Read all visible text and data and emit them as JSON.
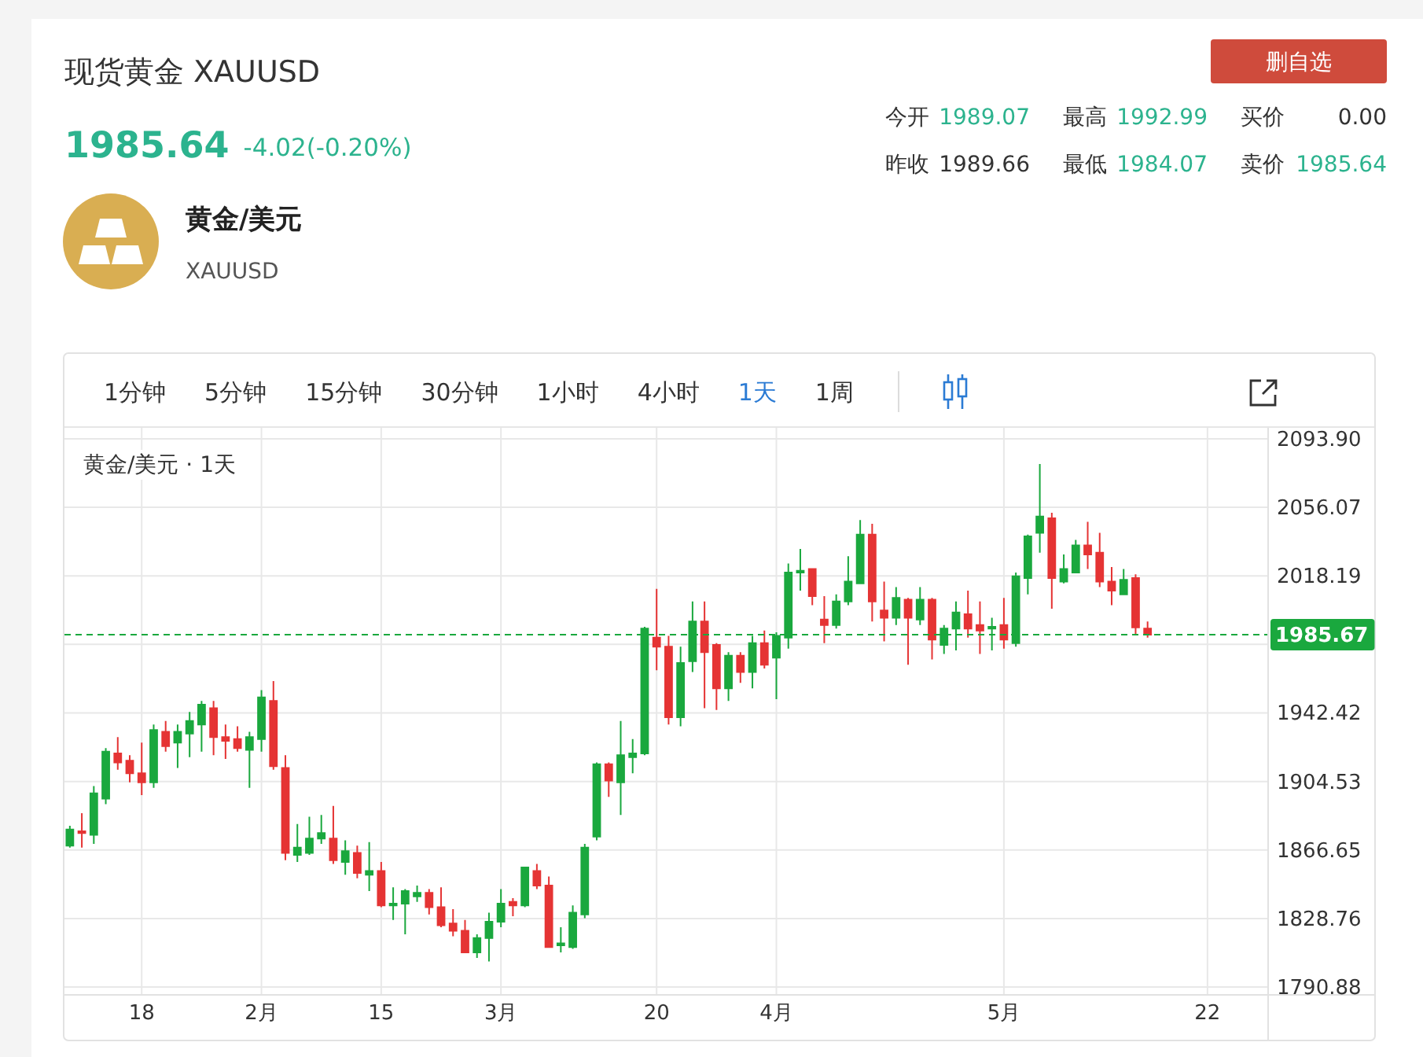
{
  "chart_data": [
    {
      "type": "other",
      "title": "现货黄金 XAUUSD",
      "annotations": [
        "1985.64",
        "-4.02(-0.20%)",
        "黄金/美元",
        "XAUUSD",
        "删自选",
        "今开",
        "1989.07",
        "最高",
        "1992.99",
        "买价",
        "0.00",
        "昨收",
        "1989.66",
        "最低",
        "1984.07",
        "卖价",
        "1985.64"
      ]
    },
    {
      "type": "candlestick",
      "title": "黄金/美元 · 1天",
      "annotations": [
        "1分钟",
        "5分钟",
        "15分钟",
        "30分钟",
        "1小时",
        "4小时",
        "1天",
        "1周"
      ],
      "categories": [
        null,
        null,
        null,
        null,
        null,
        null,
        "18",
        null,
        null,
        null,
        null,
        null,
        null,
        null,
        null,
        null,
        "2月",
        null,
        null,
        null,
        null,
        null,
        null,
        null,
        null,
        null,
        "15",
        null,
        null,
        null,
        null,
        null,
        null,
        null,
        null,
        null,
        "3月",
        null,
        null,
        null,
        null,
        null,
        null,
        null,
        null,
        null,
        null,
        null,
        null,
        "20",
        null,
        null,
        null,
        null,
        null,
        null,
        null,
        null,
        null,
        "4月",
        null,
        null,
        null,
        null,
        null,
        null,
        null,
        null,
        null,
        null,
        null,
        null,
        null,
        null,
        null,
        null,
        null,
        null,
        "5月",
        null,
        null,
        null,
        null,
        null,
        null,
        null,
        null,
        null,
        null,
        null,
        null,
        null,
        null,
        null,
        null,
        "22"
      ],
      "ohlc": [
        [
          1869,
          1880,
          1868,
          1878
        ],
        [
          1877,
          1887,
          1868,
          1876
        ],
        [
          1875,
          1902,
          1870,
          1898
        ],
        [
          1895,
          1923,
          1892,
          1921
        ],
        [
          1920,
          1929,
          1911,
          1915
        ],
        [
          1916,
          1919,
          1904,
          1909
        ],
        [
          1909,
          1926,
          1897,
          1904
        ],
        [
          1904,
          1936,
          1901,
          1933
        ],
        [
          1932,
          1938,
          1921,
          1924
        ],
        [
          1926,
          1936,
          1912,
          1932
        ],
        [
          1931,
          1943,
          1918,
          1938
        ],
        [
          1936,
          1949,
          1921,
          1947
        ],
        [
          1945,
          1949,
          1919,
          1929
        ],
        [
          1929,
          1936,
          1917,
          1927
        ],
        [
          1928,
          1935,
          1921,
          1923
        ],
        [
          1922,
          1932,
          1901,
          1929
        ],
        [
          1928,
          1955,
          1921,
          1951
        ],
        [
          1949,
          1960,
          1911,
          1913
        ],
        [
          1912,
          1919,
          1861,
          1865
        ],
        [
          1864,
          1881,
          1860,
          1868
        ],
        [
          1865,
          1885,
          1864,
          1873
        ],
        [
          1873,
          1886,
          1870,
          1876
        ],
        [
          1873,
          1891,
          1859,
          1861
        ],
        [
          1860,
          1872,
          1853,
          1866
        ],
        [
          1865,
          1869,
          1851,
          1854
        ],
        [
          1853,
          1871,
          1844,
          1855
        ],
        [
          1855,
          1860,
          1835,
          1836
        ],
        [
          1836,
          1846,
          1828,
          1837
        ],
        [
          1837,
          1845,
          1820,
          1844
        ],
        [
          1841,
          1847,
          1838,
          1843
        ],
        [
          1843,
          1845,
          1831,
          1835
        ],
        [
          1835,
          1846,
          1824,
          1825
        ],
        [
          1826,
          1834,
          1819,
          1822
        ],
        [
          1822,
          1828,
          1810,
          1810
        ],
        [
          1810,
          1820,
          1807,
          1818
        ],
        [
          1818,
          1832,
          1805,
          1827
        ],
        [
          1827,
          1845,
          1824,
          1837
        ],
        [
          1838,
          1840,
          1830,
          1836
        ],
        [
          1836,
          1857,
          1835,
          1857
        ],
        [
          1855,
          1859,
          1845,
          1847
        ],
        [
          1847,
          1852,
          1813,
          1813
        ],
        [
          1814,
          1824,
          1810,
          1815
        ],
        [
          1813,
          1836,
          1812,
          1832
        ],
        [
          1831,
          1870,
          1829,
          1868
        ],
        [
          1874,
          1915,
          1872,
          1914
        ],
        [
          1914,
          1915,
          1896,
          1905
        ],
        [
          1904,
          1938,
          1886,
          1919
        ],
        [
          1918,
          1928,
          1909,
          1920
        ],
        [
          1920,
          1990,
          1919,
          1989
        ],
        [
          1984,
          2011,
          1966,
          1979
        ],
        [
          1979,
          1985,
          1936,
          1940
        ],
        [
          1940,
          1979,
          1935,
          1970
        ],
        [
          1971,
          2004,
          1965,
          1993
        ],
        [
          1993,
          2004,
          1945,
          1976
        ],
        [
          1980,
          1981,
          1944,
          1956
        ],
        [
          1956,
          1976,
          1949,
          1974
        ],
        [
          1974,
          1976,
          1959,
          1965
        ],
        [
          1965,
          1985,
          1956,
          1981
        ],
        [
          1981,
          1988,
          1967,
          1969
        ],
        [
          1973,
          1987,
          1950,
          1985
        ],
        [
          1984,
          2025,
          1978,
          2020
        ],
        [
          2020,
          2033,
          2010,
          2021
        ],
        [
          2022,
          2022,
          2002,
          2007
        ],
        [
          1994,
          2007,
          1981,
          1991
        ],
        [
          1991,
          2008,
          1989,
          2004
        ],
        [
          2004,
          2029,
          2002,
          2015
        ],
        [
          2014,
          2049,
          2014,
          2041
        ],
        [
          2041,
          2047,
          1993,
          2004
        ],
        [
          1999,
          2015,
          1982,
          1995
        ],
        [
          1995,
          2012,
          1991,
          2006
        ],
        [
          2005,
          2006,
          1969,
          1995
        ],
        [
          1994,
          2012,
          1991,
          2005
        ],
        [
          2005,
          2006,
          1972,
          1983
        ],
        [
          1980,
          1991,
          1975,
          1989
        ],
        [
          1989,
          2004,
          1977,
          1998
        ],
        [
          1997,
          2010,
          1984,
          1989
        ],
        [
          1991,
          2004,
          1975,
          1988
        ],
        [
          1989,
          1995,
          1977,
          1990
        ],
        [
          1991,
          2006,
          1978,
          1983
        ],
        [
          1981,
          2020,
          1979,
          2018
        ],
        [
          2017,
          2041,
          2008,
          2040
        ],
        [
          2042,
          2080,
          2031,
          2051
        ],
        [
          2050,
          2053,
          2000,
          2017
        ],
        [
          2015,
          2030,
          2014,
          2022
        ],
        [
          2020,
          2038,
          2020,
          2035
        ],
        [
          2035,
          2048,
          2022,
          2030
        ],
        [
          2031,
          2042,
          2012,
          2015
        ],
        [
          2015,
          2023,
          2002,
          2010
        ],
        [
          2008,
          2022,
          2008,
          2016
        ],
        [
          2017,
          2019,
          1986,
          1989.66
        ],
        [
          1989.07,
          1992.99,
          1984.07,
          1985.64
        ],
        null,
        null,
        null,
        null,
        null
      ],
      "colors": [
        "#1aa83e",
        "#e53434",
        "#1aa83e",
        "#1aa83e",
        "#e53434",
        "#e53434",
        "#e53434",
        "#1aa83e",
        "#e53434",
        "#1aa83e",
        "#1aa83e",
        "#1aa83e",
        "#e53434",
        "#e53434",
        "#e53434",
        "#1aa83e",
        "#1aa83e",
        "#e53434",
        "#e53434",
        "#1aa83e",
        "#1aa83e",
        "#1aa83e",
        "#e53434",
        "#1aa83e",
        "#e53434",
        "#1aa83e",
        "#e53434",
        "#1aa83e",
        "#1aa83e",
        "#1aa83e",
        "#e53434",
        "#e53434",
        "#e53434",
        "#e53434",
        "#1aa83e",
        "#1aa83e",
        "#1aa83e",
        "#e53434",
        "#1aa83e",
        "#e53434",
        "#e53434",
        "#1aa83e",
        "#1aa83e",
        "#1aa83e",
        "#1aa83e",
        "#e53434",
        "#1aa83e",
        "#1aa83e",
        "#1aa83e",
        "#e53434",
        "#e53434",
        "#1aa83e",
        "#1aa83e",
        "#e53434",
        "#e53434",
        "#1aa83e",
        "#e53434",
        "#1aa83e",
        "#e53434",
        "#1aa83e",
        "#1aa83e",
        "#1aa83e",
        "#e53434",
        "#e53434",
        "#1aa83e",
        "#1aa83e",
        "#1aa83e",
        "#e53434",
        "#e53434",
        "#1aa83e",
        "#e53434",
        "#1aa83e",
        "#e53434",
        "#1aa83e",
        "#1aa83e",
        "#e53434",
        "#e53434",
        "#1aa83e",
        "#e53434",
        "#1aa83e",
        "#1aa83e",
        "#1aa83e",
        "#e53434",
        "#1aa83e",
        "#1aa83e",
        "#e53434",
        "#e53434",
        "#e53434",
        "#1aa83e",
        "#e53434",
        "#e53434",
        null,
        null,
        null,
        null,
        null
      ],
      "ylim": [
        1787,
        2100
      ],
      "yticks": [
        1790.88,
        1828.76,
        1866.65,
        1904.53,
        1942.42,
        {
          "value": 1980.3,
          "label": null
        },
        2018.19,
        2056.07,
        {
          "value": 2093.9,
          "label": "2093.90"
        }
      ],
      "grid": true,
      "ref_lines": [
        {
          "axis": "y",
          "value": 1985.67,
          "label": "1985.67",
          "color": "#1aa83e",
          "line_style": "dashed"
        }
      ]
    }
  ]
}
